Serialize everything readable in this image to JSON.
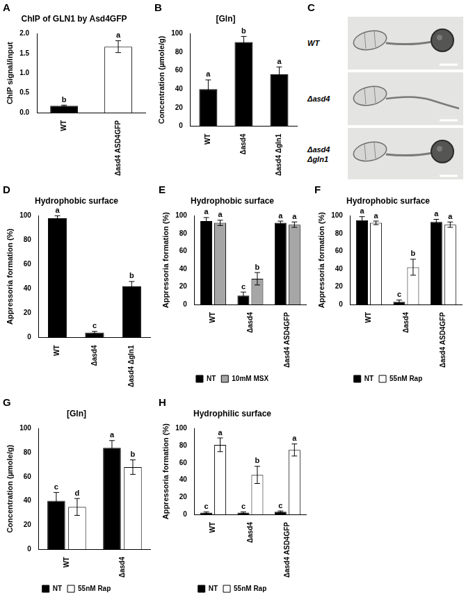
{
  "chart_data": [
    {
      "panel": "A",
      "type": "bar",
      "title": "ChIP of GLN1 by Asd4GFP",
      "y_label": "ChIP signal/input",
      "categories": [
        "WT",
        "Δasd4 ASD4GFP"
      ],
      "values": [
        0.17,
        1.67
      ],
      "errors": [
        0.02,
        0.15
      ],
      "annotations": [
        "b",
        "a"
      ],
      "colors": [
        "#000000",
        "#ffffff"
      ],
      "ylim": [
        0,
        2.0
      ],
      "yticks": [
        {
          "value": 0,
          "label": "0.0"
        },
        {
          "value": 0.5,
          "label": "0.5"
        },
        {
          "value": 1.0,
          "label": "1.0"
        },
        {
          "value": 1.5,
          "label": "1.5"
        },
        {
          "value": 2.0,
          "label": "2.0"
        }
      ],
      "grid": false
    },
    {
      "panel": "B",
      "type": "bar",
      "title": "[Gln]",
      "y_label": "Concentration (µmole/g)",
      "categories": [
        "WT",
        "Δasd4",
        "Δasd4 Δgln1"
      ],
      "values": [
        40,
        91,
        56
      ],
      "errors": [
        10,
        6,
        8
      ],
      "annotations": [
        "a",
        "b",
        "a"
      ],
      "color": "#000000",
      "ylim": [
        0,
        100
      ],
      "yticks": [
        0,
        20,
        40,
        60,
        80,
        100
      ],
      "grid": false
    },
    {
      "panel": "D",
      "type": "bar",
      "title": "Hydrophobic surface",
      "y_label": "Appressoria formation (%)",
      "categories": [
        "WT",
        "Δasd4",
        "Δasd4 Δgln1"
      ],
      "values": [
        98,
        4,
        42
      ],
      "errors": [
        2,
        1,
        4
      ],
      "annotations": [
        "a",
        "c",
        "b"
      ],
      "color": "#000000",
      "ylim": [
        0,
        100
      ],
      "yticks": [
        0,
        20,
        40,
        60,
        80,
        100
      ],
      "grid": false
    },
    {
      "panel": "E",
      "type": "bar",
      "title": "Hydrophobic surface",
      "y_label": "Appressoria formation (%)",
      "categories": [
        "WT",
        "Δasd4",
        "Δasd4 ASD4GFP"
      ],
      "series": [
        {
          "name": "NT",
          "color": "#000000",
          "values": [
            94,
            10,
            92
          ],
          "errors": [
            4,
            4,
            2
          ],
          "annotations": [
            "a",
            "c",
            "a"
          ]
        },
        {
          "name": "10mM MSX",
          "color": "#a6a6a6",
          "values": [
            92,
            29,
            90
          ],
          "errors": [
            3,
            7,
            3
          ],
          "annotations": [
            "a",
            "b",
            "a"
          ]
        }
      ],
      "ylim": [
        0,
        100
      ],
      "yticks": [
        0,
        20,
        40,
        60,
        80,
        100
      ],
      "grid": false,
      "legend": "bottom"
    },
    {
      "panel": "F",
      "type": "bar",
      "title": "Hydrophobic surface",
      "y_label": "Appressoria formation (%)",
      "categories": [
        "WT",
        "Δasd4",
        "Δasd4 ASD4GFP"
      ],
      "series": [
        {
          "name": "NT",
          "color": "#000000",
          "values": [
            95,
            3,
            93
          ],
          "errors": [
            4,
            2,
            3
          ],
          "annotations": [
            "a",
            "c",
            "a"
          ]
        },
        {
          "name": "55nM Rap",
          "color": "#ffffff",
          "values": [
            92,
            42,
            90
          ],
          "errors": [
            2,
            9,
            3
          ],
          "annotations": [
            "a",
            "b",
            "a"
          ]
        }
      ],
      "ylim": [
        0,
        100
      ],
      "yticks": [
        0,
        20,
        40,
        60,
        80,
        100
      ],
      "grid": false,
      "legend": "bottom"
    },
    {
      "panel": "G",
      "type": "bar",
      "title": "[Gln]",
      "y_label": "Concentration (µmole/g)",
      "categories": [
        "WT",
        "Δasd4"
      ],
      "series": [
        {
          "name": "NT",
          "color": "#000000",
          "values": [
            40,
            84
          ],
          "errors": [
            7,
            6
          ],
          "annotations": [
            "c",
            "a"
          ]
        },
        {
          "name": "55nM Rap",
          "color": "#ffffff",
          "values": [
            35,
            68
          ],
          "errors": [
            7,
            6
          ],
          "annotations": [
            "d",
            "b"
          ]
        }
      ],
      "ylim": [
        0,
        100
      ],
      "yticks": [
        0,
        20,
        40,
        60,
        80,
        100
      ],
      "grid": false,
      "legend": "bottom"
    },
    {
      "panel": "H",
      "type": "bar",
      "title": "Hydrophilic surface",
      "y_label": "Appressoria formation (%)",
      "categories": [
        "WT",
        "Δasd4",
        "Δasd4 ASD4GFP"
      ],
      "series": [
        {
          "name": "NT",
          "color": "#000000",
          "values": [
            2,
            2,
            3
          ],
          "errors": [
            1,
            1,
            1
          ],
          "annotations": [
            "c",
            "c",
            "c"
          ]
        },
        {
          "name": "55nM Rap",
          "color": "#ffffff",
          "values": [
            81,
            46,
            75
          ],
          "errors": [
            8,
            10,
            7
          ],
          "annotations": [
            "a",
            "b",
            "a"
          ]
        }
      ],
      "ylim": [
        0,
        100
      ],
      "yticks": [
        0,
        20,
        40,
        60,
        80,
        100
      ],
      "grid": false,
      "legend": "bottom"
    }
  ],
  "micrograph": {
    "panel": "C",
    "strains": [
      "WT",
      "Δasd4",
      "Δasd4 Δgln1"
    ]
  }
}
